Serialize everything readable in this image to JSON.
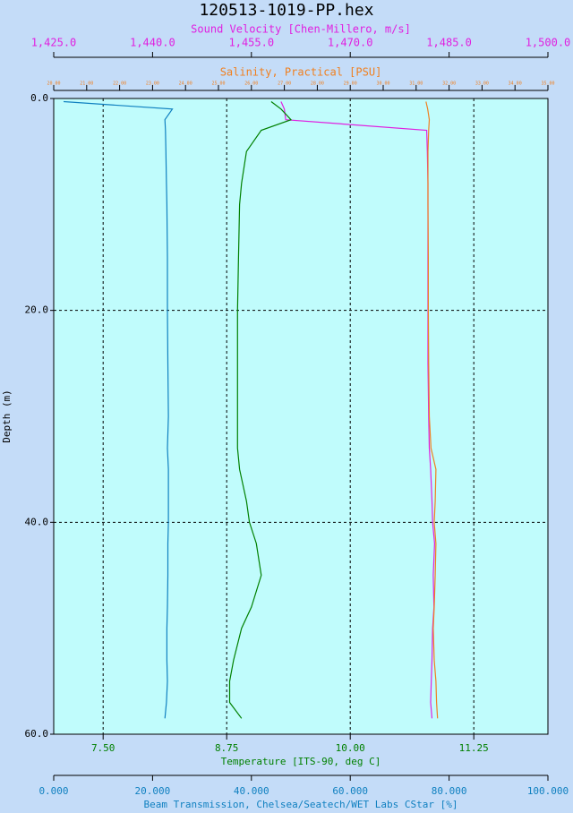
{
  "chart_data": {
    "type": "profile",
    "title": "120513-1019-PP.hex",
    "y_label": "Depth (m)",
    "ylim": [
      0,
      60
    ],
    "yticks": [
      {
        "value": 0,
        "label": "0.0"
      },
      {
        "value": 20,
        "label": "20.0"
      },
      {
        "value": 40,
        "label": "40.0"
      },
      {
        "value": 60,
        "label": "60.0"
      }
    ],
    "y_inverted": true,
    "grid": true,
    "x_axes": [
      {
        "label": "Sound Velocity [Chen-Millero, m/s]",
        "side": "top",
        "color": "#e020e0",
        "lim": [
          1425,
          1500
        ],
        "ticks": [
          {
            "value": 1425,
            "label": "1,425.0"
          },
          {
            "value": 1440,
            "label": "1,440.0"
          },
          {
            "value": 1455,
            "label": "1,455.0"
          },
          {
            "value": 1470,
            "label": "1,470.0"
          },
          {
            "value": 1485,
            "label": "1,485.0"
          },
          {
            "value": 1500,
            "label": "1,500.0"
          }
        ]
      },
      {
        "label": "Salinity, Practical [PSU]",
        "side": "top",
        "color": "#f08020",
        "lim": [
          20,
          35
        ],
        "ticks": [
          {
            "value": 20,
            "label": "20.00"
          },
          {
            "value": 21,
            "label": "21.00"
          },
          {
            "value": 22,
            "label": "22.00"
          },
          {
            "value": 23,
            "label": "23.00"
          },
          {
            "value": 24,
            "label": "24.00"
          },
          {
            "value": 25,
            "label": "25.00"
          },
          {
            "value": 26,
            "label": "26.00"
          },
          {
            "value": 27,
            "label": "27.00"
          },
          {
            "value": 28,
            "label": "28.00"
          },
          {
            "value": 29,
            "label": "29.00"
          },
          {
            "value": 30,
            "label": "30.00"
          },
          {
            "value": 31,
            "label": "31.00"
          },
          {
            "value": 32,
            "label": "32.00"
          },
          {
            "value": 33,
            "label": "33.00"
          },
          {
            "value": 34,
            "label": "34.00"
          },
          {
            "value": 35,
            "label": "35.00"
          }
        ]
      },
      {
        "label": "Temperature [ITS-90, deg C]",
        "side": "bottom",
        "color": "#008000",
        "lim": [
          7,
          12
        ],
        "grid": true,
        "ticks": [
          {
            "value": 7.5,
            "label": "7.50"
          },
          {
            "value": 8.75,
            "label": "8.75"
          },
          {
            "value": 10,
            "label": "10.00"
          },
          {
            "value": 11.25,
            "label": "11.25"
          }
        ]
      },
      {
        "label": "Beam Transmission, Chelsea/Seatech/WET Labs CStar [%]",
        "side": "bottom",
        "color": "#1080c0",
        "lim": [
          0,
          100
        ],
        "ticks": [
          {
            "value": 0,
            "label": "0.000"
          },
          {
            "value": 20,
            "label": "20.000"
          },
          {
            "value": 40,
            "label": "40.000"
          },
          {
            "value": 60,
            "label": "60.000"
          },
          {
            "value": 80,
            "label": "80.000"
          },
          {
            "value": 100,
            "label": "100.000"
          }
        ]
      }
    ],
    "depth": [
      0.3,
      1,
      2,
      3,
      5,
      8,
      10,
      15,
      20,
      25,
      30,
      33,
      35,
      38,
      40,
      42,
      45,
      48,
      50,
      53,
      55,
      57,
      58.5
    ],
    "series": [
      {
        "axis": 0,
        "color": "#e020e0",
        "values": [
          1459.5,
          1460,
          1460.2,
          1481.6,
          1481.7,
          1481.8,
          1481.8,
          1481.8,
          1481.8,
          1481.8,
          1481.9,
          1482,
          1482.2,
          1482.4,
          1482.5,
          1482.8,
          1482.6,
          1482.7,
          1482.5,
          1482.4,
          1482.3,
          1482.2,
          1482.4
        ]
      },
      {
        "axis": 1,
        "color": "#f08020",
        "values": [
          31.3,
          31.35,
          31.4,
          31.38,
          31.36,
          31.36,
          31.36,
          31.37,
          31.37,
          31.38,
          31.4,
          31.45,
          31.6,
          31.58,
          31.55,
          31.6,
          31.58,
          31.55,
          31.52,
          31.55,
          31.6,
          31.62,
          31.65
        ]
      },
      {
        "axis": 2,
        "color": "#008000",
        "values": [
          9.2,
          9.3,
          9.4,
          9.1,
          8.95,
          8.9,
          8.88,
          8.87,
          8.86,
          8.86,
          8.86,
          8.86,
          8.88,
          8.95,
          8.98,
          9.05,
          9.1,
          9.0,
          8.9,
          8.82,
          8.78,
          8.78,
          8.9
        ]
      },
      {
        "axis": 3,
        "color": "#1080c0",
        "values": [
          2,
          24,
          22.5,
          22.6,
          22.7,
          22.8,
          22.9,
          23,
          23,
          23.1,
          23.2,
          23,
          23.2,
          23.2,
          23.2,
          23.1,
          23.1,
          23,
          22.9,
          22.9,
          23,
          22.8,
          22.5
        ]
      }
    ]
  }
}
